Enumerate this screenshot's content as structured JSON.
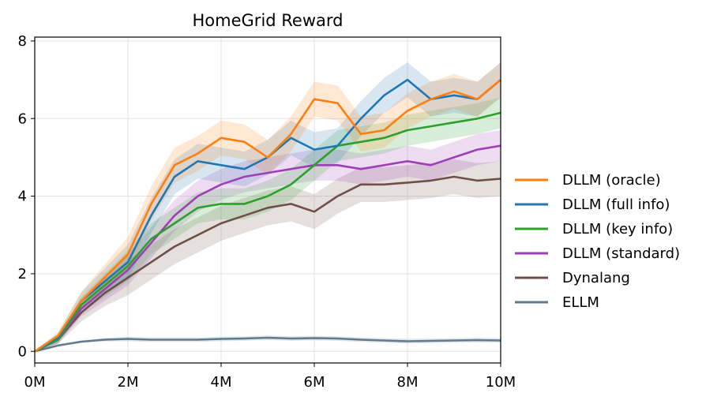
{
  "chart_data": {
    "type": "line",
    "title": "HomeGrid Reward",
    "xlabel": "",
    "ylabel": "",
    "xlim": [
      0,
      10
    ],
    "ylim": [
      -0.3,
      8.1
    ],
    "grid": true,
    "legend_position": "right",
    "x_ticks": [
      {
        "value": 0,
        "label": "0M"
      },
      {
        "value": 2,
        "label": "2M"
      },
      {
        "value": 4,
        "label": "4M"
      },
      {
        "value": 6,
        "label": "6M"
      },
      {
        "value": 8,
        "label": "8M"
      },
      {
        "value": 10,
        "label": "10M"
      }
    ],
    "y_ticks": [
      {
        "value": 0,
        "label": "0"
      },
      {
        "value": 2,
        "label": "2"
      },
      {
        "value": 4,
        "label": "4"
      },
      {
        "value": 6,
        "label": "6"
      },
      {
        "value": 8,
        "label": "8"
      }
    ],
    "x": [
      0,
      0.5,
      1,
      1.5,
      2,
      2.5,
      3,
      3.5,
      4,
      4.5,
      5,
      5.5,
      6,
      6.5,
      7,
      7.5,
      8,
      8.5,
      9,
      9.5,
      10
    ],
    "series": [
      {
        "name": "DLLM (oracle)",
        "color": "#ff7f0e",
        "band": 0.45,
        "values": [
          0,
          0.4,
          1.3,
          1.9,
          2.5,
          3.8,
          4.8,
          5.1,
          5.5,
          5.4,
          5.0,
          5.6,
          6.5,
          6.4,
          5.6,
          5.7,
          6.2,
          6.5,
          6.7,
          6.5,
          7.0
        ]
      },
      {
        "name": "DLLM (full info)",
        "color": "#1f77b4",
        "band": 0.45,
        "values": [
          0,
          0.35,
          1.3,
          1.8,
          2.3,
          3.5,
          4.5,
          4.9,
          4.8,
          4.7,
          5.0,
          5.5,
          5.2,
          5.3,
          6.0,
          6.6,
          7.0,
          6.5,
          6.6,
          6.5,
          7.0
        ]
      },
      {
        "name": "DLLM (key info)",
        "color": "#2ca02c",
        "band": 0.4,
        "values": [
          0,
          0.3,
          1.2,
          1.7,
          2.2,
          2.9,
          3.3,
          3.7,
          3.8,
          3.8,
          4.0,
          4.3,
          4.8,
          5.3,
          5.4,
          5.5,
          5.7,
          5.8,
          5.9,
          6.0,
          6.15
        ]
      },
      {
        "name": "DLLM (standard)",
        "color": "#9e3fb5",
        "band": 0.4,
        "values": [
          0,
          0.3,
          1.1,
          1.6,
          2.1,
          2.8,
          3.5,
          4.0,
          4.3,
          4.5,
          4.6,
          4.7,
          4.8,
          4.8,
          4.7,
          4.8,
          4.9,
          4.8,
          5.0,
          5.2,
          5.3
        ]
      },
      {
        "name": "Dynalang",
        "color": "#6f5049",
        "band": 0.45,
        "values": [
          0,
          0.3,
          1.0,
          1.5,
          1.9,
          2.3,
          2.7,
          3.0,
          3.3,
          3.5,
          3.7,
          3.8,
          3.6,
          4.0,
          4.3,
          4.3,
          4.35,
          4.4,
          4.5,
          4.4,
          4.45
        ]
      },
      {
        "name": "ELLM",
        "color": "#5f7b8e",
        "band": 0.06,
        "values": [
          0,
          0.15,
          0.25,
          0.3,
          0.32,
          0.3,
          0.3,
          0.3,
          0.32,
          0.33,
          0.35,
          0.33,
          0.34,
          0.33,
          0.3,
          0.28,
          0.26,
          0.27,
          0.28,
          0.29,
          0.28
        ]
      }
    ]
  }
}
